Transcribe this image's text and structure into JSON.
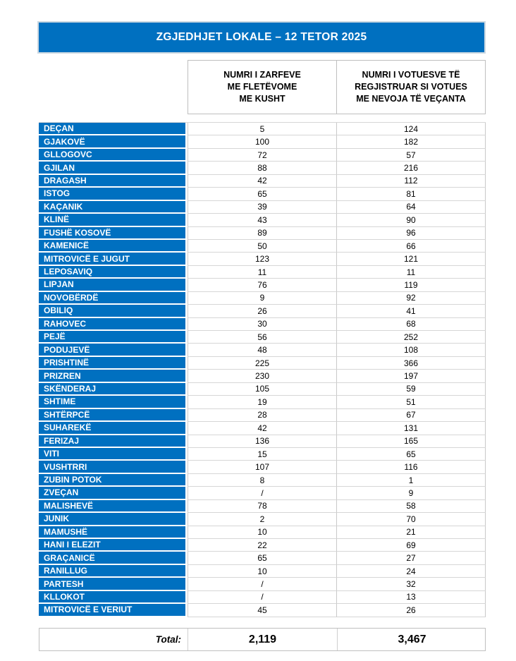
{
  "title": "ZGJEDHJET LOKALE – 12 TETOR 2025",
  "col_headers": [
    {
      "id": "envelopes",
      "label": "NUMRI I ZARFEVE\nME FLETËVOME\nME KUSHT"
    },
    {
      "id": "voters",
      "label": "NUMRI I VOTUESVE TË\nREGJISTRUAR SI VOTUES\nME NEVOJA TË VEÇANTA"
    }
  ],
  "rows": [
    {
      "municipality": "DEÇAN",
      "envelopes": "5",
      "voters": "124"
    },
    {
      "municipality": "GJAKOVË",
      "envelopes": "100",
      "voters": "182"
    },
    {
      "municipality": "GLLOGOVC",
      "envelopes": "72",
      "voters": "57"
    },
    {
      "municipality": "GJILAN",
      "envelopes": "88",
      "voters": "216"
    },
    {
      "municipality": "DRAGASH",
      "envelopes": "42",
      "voters": "112"
    },
    {
      "municipality": "ISTOG",
      "envelopes": "65",
      "voters": "81"
    },
    {
      "municipality": "KAÇANIK",
      "envelopes": "39",
      "voters": "64"
    },
    {
      "municipality": "KLINË",
      "envelopes": "43",
      "voters": "90"
    },
    {
      "municipality": "FUSHË KOSOVË",
      "envelopes": "89",
      "voters": "96"
    },
    {
      "municipality": "KAMENICË",
      "envelopes": "50",
      "voters": "66"
    },
    {
      "municipality": "MITROVICË E JUGUT",
      "envelopes": "123",
      "voters": "121"
    },
    {
      "municipality": "LEPOSAVIQ",
      "envelopes": "11",
      "voters": "11"
    },
    {
      "municipality": "LIPJAN",
      "envelopes": "76",
      "voters": "119"
    },
    {
      "municipality": "NOVOBËRDË",
      "envelopes": "9",
      "voters": "92"
    },
    {
      "municipality": "OBILIQ",
      "envelopes": "26",
      "voters": "41"
    },
    {
      "municipality": "RAHOVEC",
      "envelopes": "30",
      "voters": "68"
    },
    {
      "municipality": "PEJË",
      "envelopes": "56",
      "voters": "252"
    },
    {
      "municipality": "PODUJEVË",
      "envelopes": "48",
      "voters": "108"
    },
    {
      "municipality": "PRISHTINË",
      "envelopes": "225",
      "voters": "366"
    },
    {
      "municipality": "PRIZREN",
      "envelopes": "230",
      "voters": "197"
    },
    {
      "municipality": "SKËNDERAJ",
      "envelopes": "105",
      "voters": "59"
    },
    {
      "municipality": "SHTIME",
      "envelopes": "19",
      "voters": "51"
    },
    {
      "municipality": "SHTËRPCË",
      "envelopes": "28",
      "voters": "67"
    },
    {
      "municipality": "SUHAREKË",
      "envelopes": "42",
      "voters": "131"
    },
    {
      "municipality": "FERIZAJ",
      "envelopes": "136",
      "voters": "165"
    },
    {
      "municipality": "VITI",
      "envelopes": "15",
      "voters": "65"
    },
    {
      "municipality": "VUSHTRRI",
      "envelopes": "107",
      "voters": "116"
    },
    {
      "municipality": "ZUBIN POTOK",
      "envelopes": "8",
      "voters": "1"
    },
    {
      "municipality": "ZVEÇAN",
      "envelopes": "/",
      "voters": "9"
    },
    {
      "municipality": "MALISHEVË",
      "envelopes": "78",
      "voters": "58"
    },
    {
      "municipality": "JUNIK",
      "envelopes": "2",
      "voters": "70"
    },
    {
      "municipality": "MAMUSHË",
      "envelopes": "10",
      "voters": "21"
    },
    {
      "municipality": "HANI I ELEZIT",
      "envelopes": "22",
      "voters": "69"
    },
    {
      "municipality": "GRAÇANICË",
      "envelopes": "65",
      "voters": "27"
    },
    {
      "municipality": "RANILLUG",
      "envelopes": "10",
      "voters": "24"
    },
    {
      "municipality": "PARTESH",
      "envelopes": "/",
      "voters": "32"
    },
    {
      "municipality": "KLLOKOT",
      "envelopes": "/",
      "voters": "13"
    },
    {
      "municipality": "MITROVICË E VERIUT",
      "envelopes": "45",
      "voters": "26"
    }
  ],
  "total": {
    "label": "Total:",
    "envelopes": "2,119",
    "voters": "3,467"
  },
  "colors": {
    "accent_blue": "#0070C0",
    "border_gray": "#BFBFBF",
    "row_line_gray": "#D6D6D6",
    "text_white": "#FFFFFF",
    "text_black": "#000000"
  }
}
